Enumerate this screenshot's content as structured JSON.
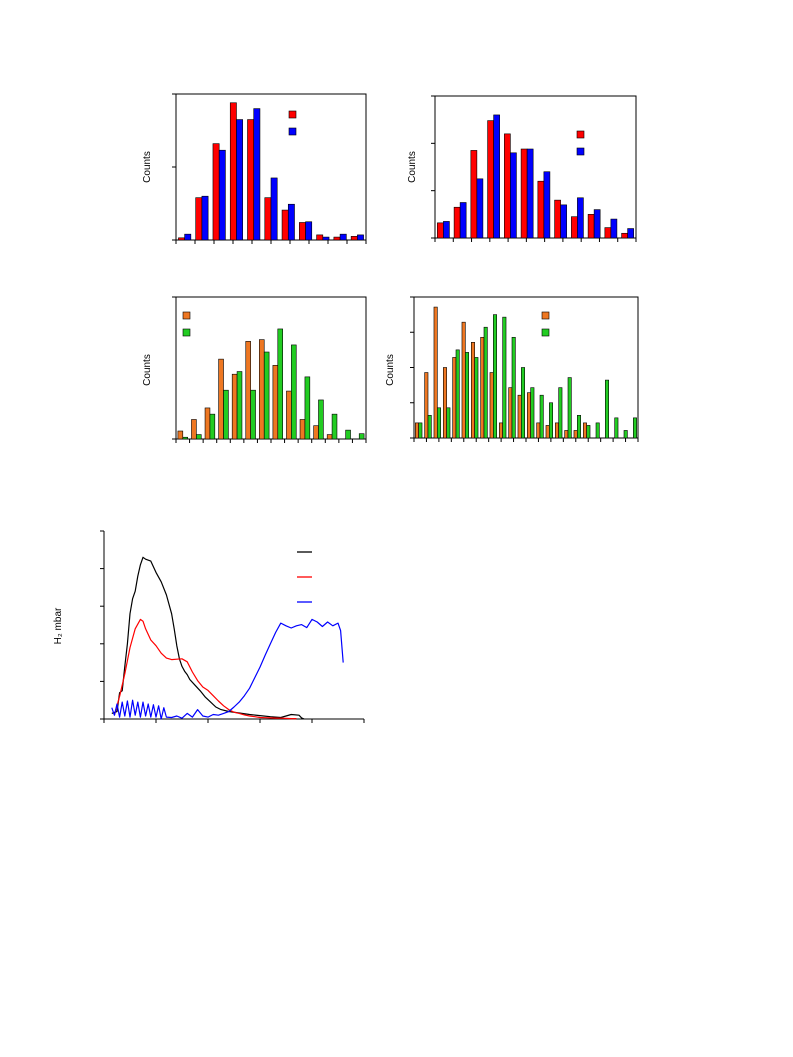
{
  "chart_data": [
    {
      "type": "bar",
      "ylabel": "Counts",
      "legend": "top-right",
      "ylim": [
        0,
        20
      ],
      "yticks": 3,
      "xticks": 11,
      "series": [
        {
          "color": "#ff0000",
          "values": [
            0.3,
            5.8,
            13.2,
            18.8,
            16.5,
            5.8,
            4.1,
            2.4,
            0.7,
            0.4,
            0.5
          ]
        },
        {
          "color": "#0000ff",
          "values": [
            0.8,
            6.0,
            12.3,
            16.5,
            18.0,
            8.5,
            4.9,
            2.5,
            0.4,
            0.8,
            0.7
          ]
        }
      ]
    },
    {
      "type": "bar",
      "ylabel": "Counts",
      "legend": "top-right",
      "ylim": [
        0,
        30
      ],
      "yticks": 4,
      "xticks": 12,
      "series": [
        {
          "color": "#ff0000",
          "values": [
            3.2,
            6.5,
            18.5,
            24.8,
            22.0,
            18.8,
            12.0,
            8.0,
            4.5,
            5.0,
            2.2,
            1.0
          ]
        },
        {
          "color": "#0000ff",
          "values": [
            3.5,
            7.5,
            12.5,
            26.0,
            18.0,
            18.8,
            14.0,
            7.0,
            8.5,
            6.0,
            4.0,
            2.0
          ]
        }
      ]
    },
    {
      "type": "bar",
      "ylabel": "Counts",
      "legend": "top-left",
      "ylim": [
        0,
        16
      ],
      "yticks": 2,
      "xticks": 15,
      "series": [
        {
          "color": "#ee7722",
          "values": [
            0.9,
            2.2,
            3.5,
            9.0,
            7.3,
            11.0,
            11.2,
            8.3,
            5.4,
            2.2,
            1.5,
            0.5,
            0,
            0
          ]
        },
        {
          "color": "#22cc22",
          "values": [
            0.2,
            0.5,
            2.8,
            5.5,
            7.6,
            5.5,
            9.8,
            12.4,
            10.6,
            7.0,
            4.4,
            2.8,
            1.0,
            0.6
          ]
        }
      ]
    },
    {
      "type": "bar",
      "ylabel": "Counts",
      "legend": "top-right",
      "ylim": [
        0,
        28
      ],
      "yticks": 5,
      "xticks": 19,
      "series": [
        {
          "color": "#ee7722",
          "values": [
            3,
            13,
            26,
            14,
            16,
            23,
            19,
            20,
            13,
            3,
            10,
            8.5,
            9,
            3,
            2.5,
            3,
            1.5,
            1.5,
            3,
            0,
            0,
            0,
            0,
            0
          ]
        },
        {
          "color": "#22cc22",
          "values": [
            3,
            4.5,
            6,
            6,
            17.5,
            17,
            16,
            22,
            24.5,
            24,
            20,
            14,
            10,
            8.5,
            7,
            10,
            12,
            4.5,
            2.5,
            3,
            11.5,
            4,
            1.5,
            4
          ]
        }
      ]
    },
    {
      "type": "line",
      "ylabel": "H₂ mbar",
      "legend": "top-right",
      "xlim": [
        0,
        100
      ],
      "ylim": [
        0,
        50
      ],
      "yticks": 6,
      "xticks": 6,
      "series": [
        {
          "color": "#000000",
          "x": [
            3,
            5,
            6,
            7,
            8,
            9,
            10,
            11,
            12,
            13,
            14,
            15,
            16,
            18,
            20,
            22,
            24,
            26,
            27,
            28,
            29,
            30,
            31,
            32,
            33,
            35,
            37,
            39,
            41,
            43,
            45,
            48,
            52,
            56,
            60,
            64,
            68,
            72,
            75,
            76,
            77
          ],
          "y": [
            1.5,
            2,
            7,
            7.5,
            14,
            20,
            28,
            32,
            34,
            38,
            41,
            43,
            42.5,
            42,
            39,
            36.5,
            33,
            28,
            24,
            19.5,
            16,
            14,
            12.7,
            11.8,
            10.5,
            9,
            7.5,
            5.8,
            4.5,
            3.2,
            2.5,
            2,
            1.6,
            1.2,
            0.9,
            0.6,
            0.4,
            1.2,
            1.0,
            0.3,
            0
          ]
        },
        {
          "color": "#ff0000",
          "x": [
            4,
            6,
            8,
            10,
            12,
            14,
            15,
            16,
            18,
            20,
            22,
            24,
            26,
            28,
            30,
            32,
            34,
            36,
            38,
            40,
            42,
            44,
            46,
            48,
            50,
            52,
            54,
            56,
            58,
            60,
            62,
            64,
            66,
            68,
            70,
            72,
            74
          ],
          "y": [
            1,
            6,
            12,
            19,
            24,
            26.5,
            26,
            24,
            21,
            19.5,
            17.5,
            16.2,
            15.8,
            15.9,
            16,
            15.2,
            12.5,
            10.2,
            8.5,
            7.6,
            6.2,
            4.8,
            3.5,
            2.5,
            1.8,
            1.5,
            1.1,
            0.8,
            0.6,
            0.4,
            0.35,
            0.3,
            0.25,
            0.2,
            0.15,
            0.1,
            0.1
          ]
        },
        {
          "color": "#0000ff",
          "x": [
            3,
            4,
            5,
            6,
            7,
            8,
            9,
            10,
            11,
            12,
            13,
            14,
            15,
            16,
            17,
            18,
            19,
            20,
            21,
            22,
            23,
            24,
            26,
            28,
            30,
            32,
            34,
            36,
            38,
            40,
            42,
            44,
            46,
            48,
            50,
            52,
            54,
            56,
            58,
            60,
            62,
            64,
            66,
            68,
            70,
            72,
            74,
            76,
            78,
            80,
            82,
            84,
            86,
            88,
            90,
            91,
            92
          ],
          "y": [
            3,
            1,
            4,
            0.5,
            4.5,
            0.8,
            4.8,
            0.5,
            5,
            1,
            4.5,
            0.5,
            4.5,
            0.8,
            4,
            0.5,
            3.8,
            0.5,
            3.5,
            0,
            3,
            0.5,
            0.4,
            0.8,
            0.2,
            1.5,
            0.5,
            2.5,
            0.8,
            0.5,
            1.2,
            1,
            1.5,
            2,
            3.2,
            4.5,
            6.2,
            8.2,
            11,
            13.8,
            17,
            20,
            23,
            25.5,
            24.8,
            24.2,
            24.8,
            25.1,
            24.3,
            26.5,
            25.8,
            24.6,
            25.8,
            24.8,
            25.5,
            23.5,
            15
          ]
        }
      ]
    }
  ]
}
